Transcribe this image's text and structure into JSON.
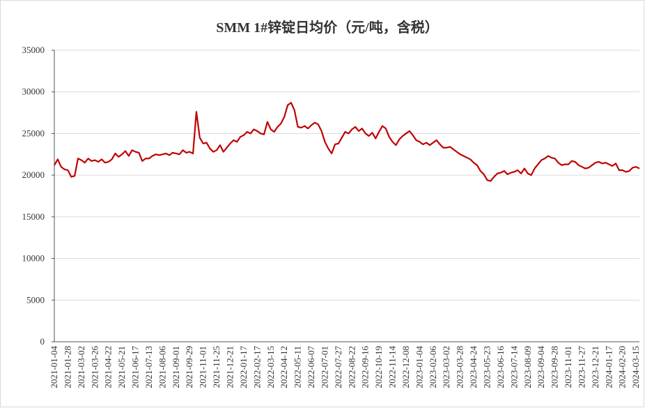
{
  "chart_data": {
    "type": "line",
    "title": "SMM 1#锌锭日均价（元/吨，含税）",
    "categories": [
      "2021-01-04",
      null,
      null,
      null,
      "2021-01-28",
      null,
      null,
      null,
      "2021-03-02",
      null,
      null,
      null,
      "2021-03-26",
      null,
      null,
      null,
      "2021-04-22",
      null,
      null,
      null,
      "2021-05-21",
      null,
      null,
      null,
      "2021-06-17",
      null,
      null,
      null,
      "2021-07-13",
      null,
      null,
      null,
      "2021-08-06",
      null,
      null,
      null,
      "2021-09-01",
      null,
      null,
      null,
      "2021-09-29",
      null,
      null,
      null,
      "2021-11-01",
      null,
      null,
      null,
      "2021-11-25",
      null,
      null,
      null,
      "2021-12-21",
      null,
      null,
      null,
      "2022-01-17",
      null,
      null,
      null,
      "2022-02-17",
      null,
      null,
      null,
      "2022-03-15",
      null,
      null,
      null,
      "2022-04-12",
      null,
      null,
      null,
      "2022-05-11",
      null,
      null,
      null,
      "2022-06-07",
      null,
      null,
      null,
      "2022-07-01",
      null,
      null,
      null,
      "2022-07-27",
      null,
      null,
      null,
      "2022-08-22",
      null,
      null,
      null,
      "2022-09-16",
      null,
      null,
      null,
      "2022-10-19",
      null,
      null,
      null,
      "2022-11-14",
      null,
      null,
      null,
      "2022-12-08",
      null,
      null,
      null,
      "2023-01-04",
      null,
      null,
      null,
      "2023-02-06",
      null,
      null,
      null,
      "2023-03-02",
      null,
      null,
      null,
      "2023-03-28",
      null,
      null,
      null,
      "2023-04-24",
      null,
      null,
      null,
      "2023-05-23",
      null,
      null,
      null,
      "2023-06-16",
      null,
      null,
      null,
      "2023-07-14",
      null,
      null,
      null,
      "2023-08-09",
      null,
      null,
      null,
      "2023-09-04",
      null,
      null,
      null,
      "2023-09-28",
      null,
      null,
      null,
      "2023-11-01",
      null,
      null,
      null,
      "2023-11-27",
      null,
      null,
      null,
      "2023-12-21",
      null,
      null,
      null,
      "2024-01-17",
      null,
      null,
      null,
      "2024-02-20",
      null,
      null,
      null,
      "2024-03-15",
      null
    ],
    "series": [
      {
        "color": "#c00000",
        "values": [
          21200,
          21900,
          21000,
          20700,
          20600,
          19800,
          19900,
          22000,
          21800,
          21500,
          22000,
          21700,
          21800,
          21600,
          21900,
          21500,
          21600,
          21900,
          22600,
          22200,
          22500,
          22900,
          22300,
          23000,
          22800,
          22700,
          21700,
          22000,
          22000,
          22300,
          22500,
          22400,
          22500,
          22600,
          22400,
          22700,
          22600,
          22500,
          23000,
          22700,
          22800,
          22600,
          27600,
          24500,
          23800,
          23900,
          23200,
          22800,
          23000,
          23600,
          22800,
          23300,
          23800,
          24200,
          24000,
          24600,
          24800,
          25200,
          25000,
          25500,
          25300,
          25000,
          24900,
          26400,
          25500,
          25200,
          25800,
          26200,
          27000,
          28400,
          28700,
          27800,
          25800,
          25700,
          25900,
          25600,
          26000,
          26300,
          26100,
          25300,
          24000,
          23200,
          22600,
          23700,
          23800,
          24500,
          25200,
          25000,
          25500,
          25800,
          25300,
          25600,
          25000,
          24700,
          25100,
          24400,
          25200,
          25900,
          25600,
          24600,
          24000,
          23600,
          24300,
          24700,
          25000,
          25300,
          24800,
          24200,
          24000,
          23700,
          23900,
          23600,
          23900,
          24200,
          23700,
          23300,
          23300,
          23400,
          23100,
          22800,
          22500,
          22300,
          22100,
          21900,
          21500,
          21200,
          20500,
          20100,
          19400,
          19300,
          19800,
          20200,
          20300,
          20500,
          20100,
          20300,
          20400,
          20600,
          20200,
          20800,
          20200,
          20000,
          20800,
          21300,
          21800,
          22000,
          22300,
          22100,
          22000,
          21500,
          21200,
          21300,
          21300,
          21700,
          21600,
          21200,
          21000,
          20800,
          20900,
          21200,
          21500,
          21600,
          21400,
          21500,
          21300,
          21100,
          21400,
          20600,
          20600,
          20400,
          20500,
          20900,
          21000,
          20800
        ]
      }
    ],
    "ylim": [
      0,
      35000
    ],
    "yticks": [
      0,
      5000,
      10000,
      15000,
      20000,
      25000,
      30000,
      35000
    ],
    "grid": true
  }
}
